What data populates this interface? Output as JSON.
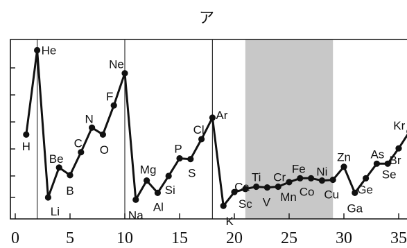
{
  "chart_data": {
    "type": "line",
    "title": "ア",
    "xlabel": "",
    "ylabel": "",
    "xlim": [
      -0.5,
      36
    ],
    "ylim": [
      2.6,
      26
    ],
    "x_ticks": [
      0,
      5,
      10,
      15,
      20,
      25,
      30,
      35
    ],
    "x_tick_labels": [
      "0",
      "5",
      "10",
      "15",
      "20",
      "25",
      "30",
      "35"
    ],
    "vertical_lines": [
      2,
      10,
      18
    ],
    "shaded_region": [
      21,
      29
    ],
    "shade_color": "#c8c8c8",
    "line_color": "#111111",
    "series": [
      {
        "x": [
          1,
          2,
          3,
          4,
          5,
          6,
          7,
          8,
          9,
          10,
          11,
          12,
          13,
          14,
          15,
          16,
          17,
          18,
          19,
          20,
          21,
          22,
          23,
          24,
          25,
          26,
          27,
          28,
          29,
          30,
          31,
          32,
          33,
          34,
          35,
          36
        ],
        "y": [
          13.6,
          24.6,
          5.4,
          9.3,
          8.3,
          11.3,
          14.5,
          13.6,
          17.4,
          21.6,
          5.1,
          7.6,
          6.0,
          8.2,
          10.5,
          10.4,
          13.0,
          15.8,
          4.3,
          6.1,
          6.5,
          6.8,
          6.7,
          6.8,
          7.4,
          7.9,
          7.9,
          7.6,
          7.7,
          9.4,
          6.0,
          7.9,
          9.8,
          9.8,
          11.8,
          14.0
        ]
      }
    ],
    "point_labels": [
      "H",
      "He",
      "Li",
      "Be",
      "B",
      "C",
      "N",
      "O",
      "F",
      "Ne",
      "Na",
      "Mg",
      "Al",
      "Si",
      "P",
      "S",
      "Cl",
      "Ar",
      "K",
      "Ca",
      "Sc",
      "Ti",
      "V",
      "Cr",
      "Mn",
      "Fe",
      "Co",
      "Ni",
      "Cu",
      "Zn",
      "Ga",
      "Ge",
      "As",
      "Se",
      "Br",
      "Kr"
    ],
    "grid": false
  }
}
